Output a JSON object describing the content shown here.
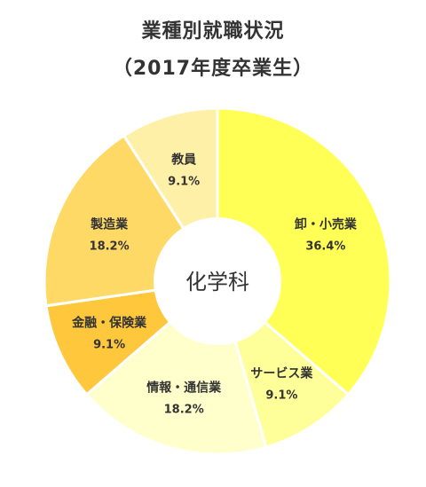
{
  "chart_data": {
    "type": "pie",
    "title": "業種別就職状況",
    "subtitle": "（2017年度卒業生）",
    "center_label": "化学科",
    "categories": [
      "卸・小売業",
      "サービス業",
      "情報・通信業",
      "金融・保険業",
      "製造業",
      "教員"
    ],
    "values": [
      36.4,
      9.1,
      18.2,
      9.1,
      18.2,
      9.1
    ],
    "value_labels": [
      "36.4%",
      "9.1%",
      "18.2%",
      "9.1%",
      "18.2%",
      "9.1%"
    ],
    "colors": [
      "#FFFF55",
      "#FFFF99",
      "#FFFFCC",
      "#FFC83C",
      "#FFD966",
      "#FFF0A8"
    ],
    "legend": "none",
    "grid": false
  }
}
